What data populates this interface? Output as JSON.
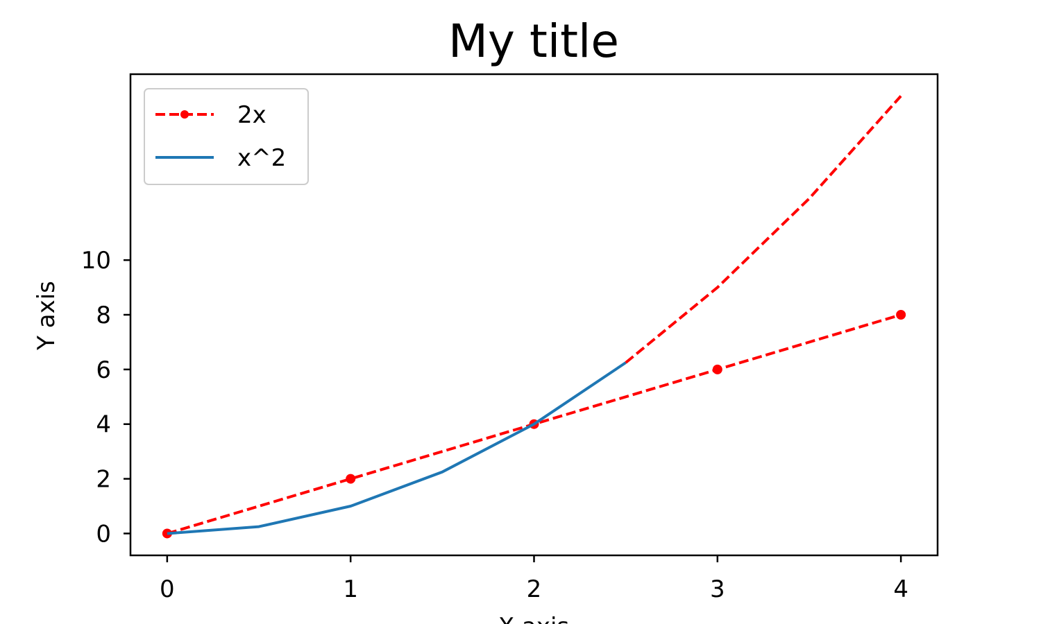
{
  "chart_data": {
    "type": "line",
    "title": "My title",
    "xlabel": "X axis",
    "ylabel": "Y axis",
    "xlim": [
      -0.2,
      4.2
    ],
    "ylim": [
      -0.8,
      16.8
    ],
    "xticks": [
      0,
      1,
      2,
      3,
      4
    ],
    "yticks": [
      0,
      2,
      4,
      6,
      8,
      10
    ],
    "grid": false,
    "legend_position": "top-left",
    "series": [
      {
        "name": "2x",
        "color": "#ff0000",
        "style": "dashed",
        "marker": "circle",
        "x": [
          0,
          1,
          2,
          3,
          4
        ],
        "y": [
          0,
          2,
          4,
          6,
          8
        ]
      },
      {
        "name": "x^2",
        "color": "#1f77b4",
        "style": "solid",
        "marker": "none",
        "x": [
          0,
          0.5,
          1,
          1.5,
          2,
          2.5
        ],
        "y": [
          0,
          0.25,
          1,
          2.25,
          4,
          6.25
        ]
      },
      {
        "color": "#ff0000",
        "style": "dashed",
        "marker": "none",
        "x": [
          2.5,
          3,
          3.5,
          4
        ],
        "y": [
          6.25,
          9,
          12.25,
          16
        ]
      }
    ]
  }
}
